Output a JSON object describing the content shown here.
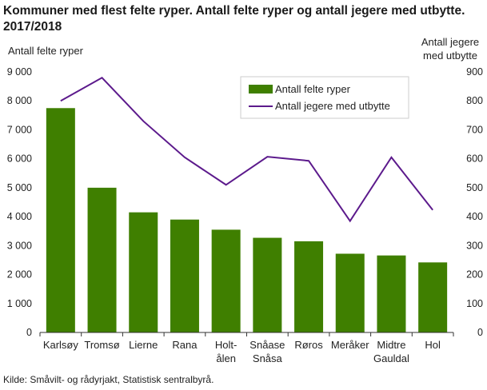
{
  "chart_data": {
    "type": "bar",
    "title": "Kommuner med flest felte ryper. Antall felte ryper og antall jegere med utbytte. 2017/2018",
    "ylabel": "Antall felte ryper",
    "ylabel_right": [
      "Antall jegere",
      "med utbytte"
    ],
    "ylim": [
      0,
      9000
    ],
    "ylim_right": [
      0,
      900
    ],
    "yticks": [
      "0",
      "1 000",
      "2 000",
      "3 000",
      "4 000",
      "5 000",
      "6 000",
      "7 000",
      "8 000",
      "9 000"
    ],
    "yticks_right": [
      "0",
      "100",
      "200",
      "300",
      "400",
      "500",
      "600",
      "700",
      "800",
      "900"
    ],
    "categories": [
      [
        "Karlsøy"
      ],
      [
        "Tromsø"
      ],
      [
        "Lierne"
      ],
      [
        "Rana"
      ],
      [
        "Holt-",
        "ålen"
      ],
      [
        "Snåase",
        "Snåsa"
      ],
      [
        "Røros"
      ],
      [
        "Meråker"
      ],
      [
        "Midtre",
        "Gauldal"
      ],
      [
        "Hol"
      ]
    ],
    "series": [
      {
        "name": "Antall felte ryper",
        "type": "bar",
        "axis": "left",
        "color": "#3f7f00",
        "values": [
          7750,
          5000,
          4150,
          3900,
          3550,
          3270,
          3150,
          2720,
          2660,
          2420
        ]
      },
      {
        "name": "Antall jegere med utbytte",
        "type": "line",
        "axis": "right",
        "color": "#5c1a8c",
        "values": [
          800,
          880,
          730,
          605,
          510,
          607,
          593,
          385,
          605,
          423
        ]
      }
    ],
    "legend": "top-right",
    "grid": false,
    "source": "Kilde: Småvilt- og rådyrjakt, Statistisk sentralbyrå."
  }
}
